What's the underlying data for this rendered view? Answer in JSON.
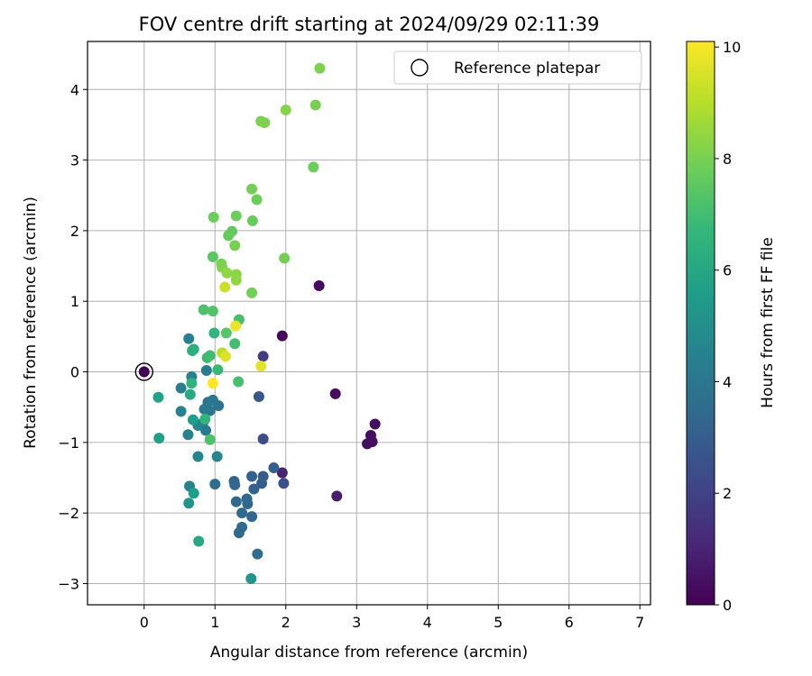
{
  "chart_data": {
    "type": "scatter",
    "title": "FOV centre drift starting at 2024/09/29 02:11:39",
    "xlabel": "Angular distance from reference (arcmin)",
    "ylabel": "Rotation from reference (arcmin)",
    "xlim": [
      -0.8,
      7.15
    ],
    "ylim": [
      -3.3,
      4.68
    ],
    "x_ticks": [
      0,
      1,
      2,
      3,
      4,
      5,
      6,
      7
    ],
    "x_tick_labels": [
      "0",
      "1",
      "2",
      "3",
      "4",
      "5",
      "6",
      "7"
    ],
    "y_ticks": [
      -3,
      -2,
      -1,
      0,
      1,
      2,
      3,
      4
    ],
    "y_tick_labels": [
      "−3",
      "−2",
      "−1",
      "0",
      "1",
      "2",
      "3",
      "4"
    ],
    "grid": true,
    "legend": {
      "placement": "upper-right",
      "label": "Reference platepar"
    },
    "reference_point": {
      "x": 0,
      "y": 0
    },
    "colorbar": {
      "label": "Hours from first FF file",
      "min": 0,
      "max": 10.1,
      "ticks": [
        0,
        2,
        4,
        6,
        8,
        10
      ],
      "tick_labels": [
        "0",
        "2",
        "4",
        "6",
        "8",
        "10"
      ],
      "colormap": "viridis",
      "colors": [
        "#440154",
        "#482878",
        "#3e4989",
        "#31688e",
        "#26828e",
        "#1f9e89",
        "#35b779",
        "#6ece58",
        "#b5de2b",
        "#fde725"
      ]
    },
    "points": [
      {
        "x": 0.0,
        "y": 0.0,
        "h": 0.0
      },
      {
        "x": 1.95,
        "y": 0.51,
        "h": 0.2
      },
      {
        "x": 2.47,
        "y": 1.22,
        "h": 0.3
      },
      {
        "x": 2.7,
        "y": -0.31,
        "h": 0.3
      },
      {
        "x": 3.26,
        "y": -0.74,
        "h": 0.4
      },
      {
        "x": 3.2,
        "y": -0.9,
        "h": 0.4
      },
      {
        "x": 3.15,
        "y": -1.02,
        "h": 0.4
      },
      {
        "x": 3.22,
        "y": -0.99,
        "h": 0.4
      },
      {
        "x": 2.72,
        "y": -1.76,
        "h": 0.8
      },
      {
        "x": 1.95,
        "y": -1.43,
        "h": 1.0
      },
      {
        "x": 1.68,
        "y": 0.22,
        "h": 1.8
      },
      {
        "x": 1.68,
        "y": -0.95,
        "h": 2.3
      },
      {
        "x": 1.62,
        "y": -0.35,
        "h": 2.8
      },
      {
        "x": 1.97,
        "y": -1.58,
        "h": 2.5
      },
      {
        "x": 1.68,
        "y": -1.48,
        "h": 2.9
      },
      {
        "x": 1.66,
        "y": -1.58,
        "h": 3.0
      },
      {
        "x": 1.83,
        "y": -1.36,
        "h": 3.0
      },
      {
        "x": 1.52,
        "y": -1.48,
        "h": 3.2
      },
      {
        "x": 1.55,
        "y": -1.66,
        "h": 3.2
      },
      {
        "x": 1.27,
        "y": -1.55,
        "h": 3.3
      },
      {
        "x": 1.28,
        "y": -1.6,
        "h": 3.3
      },
      {
        "x": 1.45,
        "y": -1.8,
        "h": 3.3
      },
      {
        "x": 1.3,
        "y": -1.84,
        "h": 3.4
      },
      {
        "x": 1.46,
        "y": -1.87,
        "h": 3.4
      },
      {
        "x": 1.38,
        "y": -2.0,
        "h": 3.4
      },
      {
        "x": 1.52,
        "y": -2.05,
        "h": 3.3
      },
      {
        "x": 1.38,
        "y": -2.2,
        "h": 3.5
      },
      {
        "x": 1.34,
        "y": -2.28,
        "h": 3.5
      },
      {
        "x": 1.0,
        "y": -1.59,
        "h": 3.6
      },
      {
        "x": 1.6,
        "y": -2.58,
        "h": 3.6
      },
      {
        "x": 1.05,
        "y": -0.48,
        "h": 3.8
      },
      {
        "x": 0.9,
        "y": -0.43,
        "h": 3.9
      },
      {
        "x": 0.97,
        "y": -0.4,
        "h": 4.0
      },
      {
        "x": 0.93,
        "y": -0.55,
        "h": 4.0
      },
      {
        "x": 0.85,
        "y": -0.53,
        "h": 4.1
      },
      {
        "x": 0.87,
        "y": -0.83,
        "h": 4.1
      },
      {
        "x": 0.83,
        "y": -0.72,
        "h": 4.1
      },
      {
        "x": 0.88,
        "y": 0.02,
        "h": 4.2
      },
      {
        "x": 0.52,
        "y": -0.23,
        "h": 4.3
      },
      {
        "x": 0.63,
        "y": 0.47,
        "h": 4.4
      },
      {
        "x": 0.67,
        "y": -0.07,
        "h": 4.4
      },
      {
        "x": 0.62,
        "y": -0.89,
        "h": 4.4
      },
      {
        "x": 0.52,
        "y": -0.56,
        "h": 4.5
      },
      {
        "x": 0.64,
        "y": -1.62,
        "h": 4.5
      },
      {
        "x": 0.76,
        "y": -0.76,
        "h": 4.6
      },
      {
        "x": 1.03,
        "y": -1.2,
        "h": 4.6
      },
      {
        "x": 0.76,
        "y": -1.2,
        "h": 4.7
      },
      {
        "x": 0.63,
        "y": -1.86,
        "h": 5.2
      },
      {
        "x": 1.51,
        "y": -2.93,
        "h": 5.3
      },
      {
        "x": 0.7,
        "y": -1.72,
        "h": 5.6
      },
      {
        "x": 0.69,
        "y": -0.68,
        "h": 5.6
      },
      {
        "x": 0.21,
        "y": -0.94,
        "h": 5.7
      },
      {
        "x": 0.2,
        "y": -0.36,
        "h": 5.8
      },
      {
        "x": 0.77,
        "y": -2.4,
        "h": 6.0
      },
      {
        "x": 0.65,
        "y": -0.32,
        "h": 6.1
      },
      {
        "x": 0.7,
        "y": 0.32,
        "h": 6.3
      },
      {
        "x": 0.68,
        "y": 0.3,
        "h": 6.4
      },
      {
        "x": 0.67,
        "y": -0.16,
        "h": 6.5
      },
      {
        "x": 0.86,
        "y": -0.67,
        "h": 6.6
      },
      {
        "x": 0.99,
        "y": 0.55,
        "h": 6.6
      },
      {
        "x": 1.04,
        "y": 0.03,
        "h": 6.8
      },
      {
        "x": 0.89,
        "y": 0.2,
        "h": 6.9
      },
      {
        "x": 0.93,
        "y": 0.23,
        "h": 7.0
      },
      {
        "x": 1.28,
        "y": 0.4,
        "h": 7.0
      },
      {
        "x": 1.33,
        "y": -0.14,
        "h": 7.1
      },
      {
        "x": 1.34,
        "y": 0.74,
        "h": 7.1
      },
      {
        "x": 0.84,
        "y": 0.88,
        "h": 7.2
      },
      {
        "x": 0.93,
        "y": -0.96,
        "h": 7.2
      },
      {
        "x": 0.97,
        "y": 0.86,
        "h": 7.3
      },
      {
        "x": 1.16,
        "y": 0.55,
        "h": 7.4
      },
      {
        "x": 0.97,
        "y": 1.63,
        "h": 7.5
      },
      {
        "x": 1.24,
        "y": 1.99,
        "h": 7.6
      },
      {
        "x": 1.19,
        "y": 1.93,
        "h": 7.7
      },
      {
        "x": 0.98,
        "y": 2.19,
        "h": 7.8
      },
      {
        "x": 1.3,
        "y": 2.21,
        "h": 7.8
      },
      {
        "x": 1.53,
        "y": 2.14,
        "h": 7.7
      },
      {
        "x": 1.52,
        "y": 2.59,
        "h": 7.9
      },
      {
        "x": 1.59,
        "y": 2.44,
        "h": 7.8
      },
      {
        "x": 1.52,
        "y": 1.12,
        "h": 7.9
      },
      {
        "x": 1.28,
        "y": 1.79,
        "h": 8.0
      },
      {
        "x": 1.09,
        "y": 1.53,
        "h": 8.0
      },
      {
        "x": 1.1,
        "y": 1.48,
        "h": 8.1
      },
      {
        "x": 1.3,
        "y": 1.38,
        "h": 8.3
      },
      {
        "x": 1.3,
        "y": 1.3,
        "h": 8.4
      },
      {
        "x": 1.17,
        "y": 1.4,
        "h": 8.4
      },
      {
        "x": 1.98,
        "y": 1.61,
        "h": 7.9
      },
      {
        "x": 1.65,
        "y": 3.55,
        "h": 8.1
      },
      {
        "x": 1.7,
        "y": 3.53,
        "h": 8.1
      },
      {
        "x": 2.0,
        "y": 3.71,
        "h": 8.2
      },
      {
        "x": 2.39,
        "y": 2.9,
        "h": 7.8
      },
      {
        "x": 2.42,
        "y": 3.78,
        "h": 8.0
      },
      {
        "x": 2.48,
        "y": 4.3,
        "h": 8.1
      },
      {
        "x": 1.1,
        "y": 0.27,
        "h": 9.1
      },
      {
        "x": 1.14,
        "y": 1.2,
        "h": 9.3
      },
      {
        "x": 1.15,
        "y": 0.22,
        "h": 9.6
      },
      {
        "x": 1.65,
        "y": 0.08,
        "h": 9.7
      },
      {
        "x": 1.29,
        "y": 0.65,
        "h": 9.8
      },
      {
        "x": 0.97,
        "y": -0.16,
        "h": 10.1
      }
    ]
  }
}
